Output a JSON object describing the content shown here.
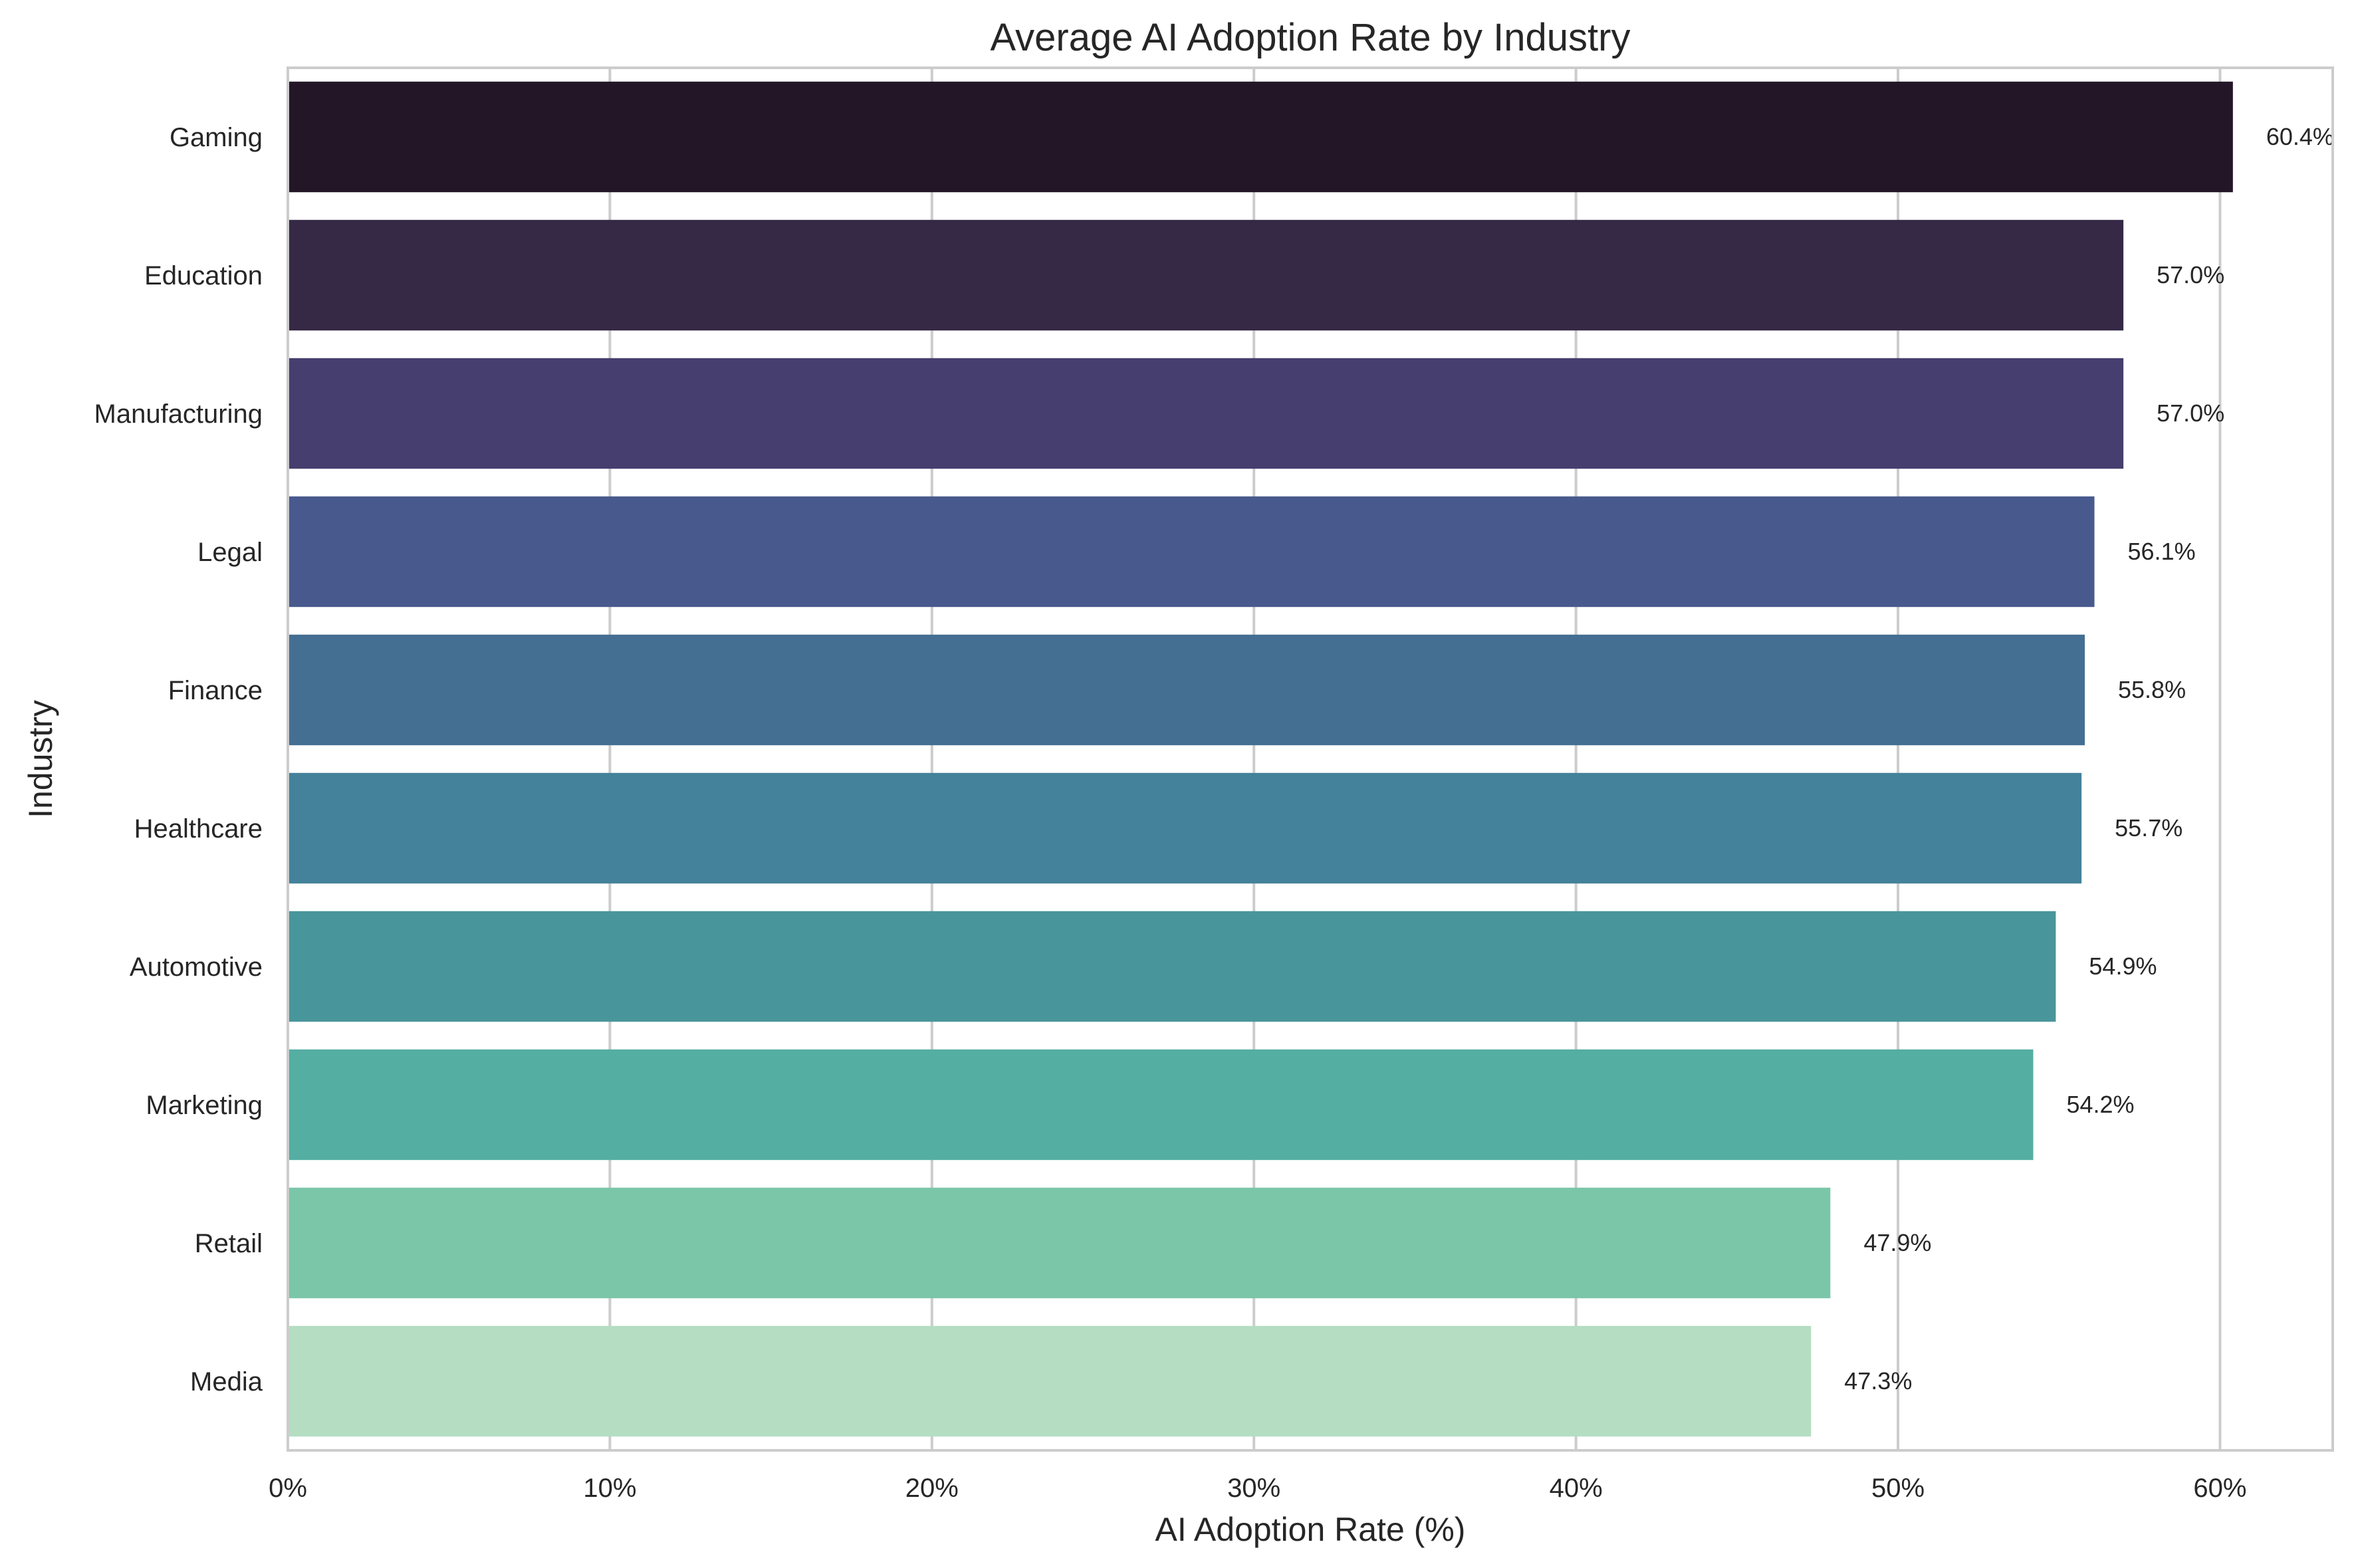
{
  "chart_data": {
    "type": "bar",
    "orientation": "horizontal",
    "title": "Average AI Adoption Rate by Industry",
    "xlabel": "AI Adoption Rate (%)",
    "ylabel": "Industry",
    "xlim": [
      0,
      63.5
    ],
    "x_ticks": [
      0,
      10,
      20,
      30,
      40,
      50,
      60
    ],
    "x_tick_labels": [
      "0%",
      "10%",
      "20%",
      "30%",
      "40%",
      "50%",
      "60%"
    ],
    "grid": "vertical",
    "categories": [
      "Gaming",
      "Education",
      "Manufacturing",
      "Legal",
      "Finance",
      "Healthcare",
      "Automotive",
      "Marketing",
      "Retail",
      "Media"
    ],
    "values": [
      60.4,
      57.0,
      57.0,
      56.1,
      55.8,
      55.7,
      54.9,
      54.2,
      47.9,
      47.3
    ],
    "value_labels": [
      "60.4%",
      "57.0%",
      "57.0%",
      "56.1%",
      "55.8%",
      "55.7%",
      "54.9%",
      "54.2%",
      "47.9%",
      "47.3%"
    ],
    "colors": [
      "#231727",
      "#352946",
      "#463e6e",
      "#485a8d",
      "#446e92",
      "#43829a",
      "#48969b",
      "#54aea2",
      "#7bc6a8",
      "#b4ddc2"
    ]
  }
}
